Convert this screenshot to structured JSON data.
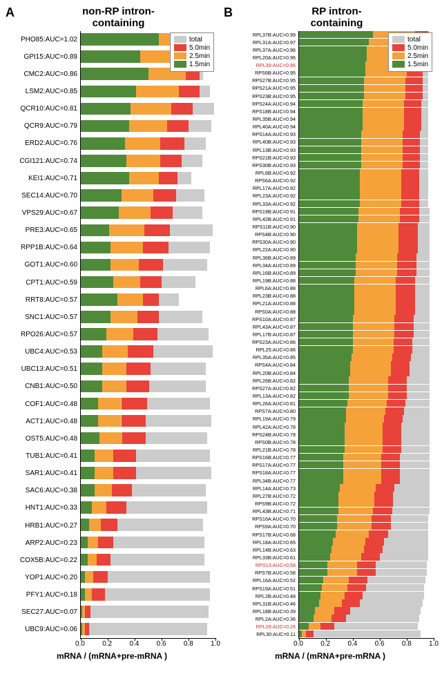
{
  "colors": {
    "total": "#cccccc",
    "t50": "#e8423a",
    "t25": "#f5a23b",
    "t15": "#4e8a3a",
    "highlight": "#d62728"
  },
  "legend": {
    "items": [
      {
        "key": "total",
        "label": "total"
      },
      {
        "key": "t50",
        "label": "5.0min"
      },
      {
        "key": "t25",
        "label": "2.5min"
      },
      {
        "key": "t15",
        "label": "1.5min"
      }
    ]
  },
  "xaxis": {
    "title": "mRNA / (mRNA+pre-mRNA )",
    "ticks": [
      0.0,
      0.2,
      0.4,
      0.6,
      0.8,
      1.0
    ]
  },
  "panelA": {
    "letter": "A",
    "title": "non-RP intron-\ncontaining",
    "rows": [
      {
        "gene": "PHO85",
        "auc": 1.02,
        "total": 0.96,
        "seg": [
          0.58,
          0.29,
          0.1
        ]
      },
      {
        "gene": "GPI15",
        "auc": 0.89,
        "total": 0.97,
        "seg": [
          0.44,
          0.31,
          0.15
        ]
      },
      {
        "gene": "CMC2",
        "auc": 0.86,
        "total": 0.91,
        "seg": [
          0.5,
          0.28,
          0.1
        ]
      },
      {
        "gene": "LSM2",
        "auc": 0.85,
        "total": 0.96,
        "seg": [
          0.41,
          0.32,
          0.15
        ]
      },
      {
        "gene": "QCR10",
        "auc": 0.81,
        "total": 0.99,
        "seg": [
          0.37,
          0.3,
          0.16
        ]
      },
      {
        "gene": "QCR9",
        "auc": 0.79,
        "total": 0.97,
        "seg": [
          0.36,
          0.28,
          0.16
        ]
      },
      {
        "gene": "ERD2",
        "auc": 0.76,
        "total": 0.93,
        "seg": [
          0.33,
          0.26,
          0.18
        ]
      },
      {
        "gene": "CGI121",
        "auc": 0.74,
        "total": 0.9,
        "seg": [
          0.34,
          0.25,
          0.16
        ]
      },
      {
        "gene": "KEI1",
        "auc": 0.71,
        "total": 0.82,
        "seg": [
          0.36,
          0.22,
          0.14
        ]
      },
      {
        "gene": "SEC14",
        "auc": 0.7,
        "total": 0.92,
        "seg": [
          0.3,
          0.24,
          0.17
        ]
      },
      {
        "gene": "VPS29",
        "auc": 0.67,
        "total": 0.9,
        "seg": [
          0.28,
          0.24,
          0.16
        ]
      },
      {
        "gene": "PRE3",
        "auc": 0.65,
        "total": 0.98,
        "seg": [
          0.21,
          0.26,
          0.19
        ]
      },
      {
        "gene": "RPP1B",
        "auc": 0.64,
        "total": 0.96,
        "seg": [
          0.22,
          0.24,
          0.19
        ]
      },
      {
        "gene": "GOT1",
        "auc": 0.6,
        "total": 0.94,
        "seg": [
          0.22,
          0.21,
          0.18
        ]
      },
      {
        "gene": "CPT1",
        "auc": 0.59,
        "total": 0.85,
        "seg": [
          0.24,
          0.2,
          0.16
        ]
      },
      {
        "gene": "RRT8",
        "auc": 0.57,
        "total": 0.73,
        "seg": [
          0.27,
          0.19,
          0.12
        ]
      },
      {
        "gene": "SNC1",
        "auc": 0.57,
        "total": 0.9,
        "seg": [
          0.22,
          0.2,
          0.16
        ]
      },
      {
        "gene": "RPO26",
        "auc": 0.57,
        "total": 0.95,
        "seg": [
          0.19,
          0.2,
          0.18
        ]
      },
      {
        "gene": "UBC4",
        "auc": 0.53,
        "total": 0.98,
        "seg": [
          0.16,
          0.19,
          0.19
        ]
      },
      {
        "gene": "UBC13",
        "auc": 0.51,
        "total": 0.93,
        "seg": [
          0.16,
          0.18,
          0.18
        ]
      },
      {
        "gene": "CNB1",
        "auc": 0.5,
        "total": 0.93,
        "seg": [
          0.16,
          0.18,
          0.17
        ]
      },
      {
        "gene": "COF1",
        "auc": 0.48,
        "total": 0.96,
        "seg": [
          0.13,
          0.17,
          0.19
        ]
      },
      {
        "gene": "ACT1",
        "auc": 0.48,
        "total": 0.97,
        "seg": [
          0.13,
          0.17,
          0.18
        ]
      },
      {
        "gene": "OST5",
        "auc": 0.48,
        "total": 0.94,
        "seg": [
          0.14,
          0.17,
          0.17
        ]
      },
      {
        "gene": "TUB1",
        "auc": 0.41,
        "total": 0.96,
        "seg": [
          0.1,
          0.14,
          0.17
        ]
      },
      {
        "gene": "SAR1",
        "auc": 0.41,
        "total": 0.97,
        "seg": [
          0.1,
          0.14,
          0.17
        ]
      },
      {
        "gene": "SAC6",
        "auc": 0.38,
        "total": 0.93,
        "seg": [
          0.1,
          0.13,
          0.15
        ]
      },
      {
        "gene": "HNT1",
        "auc": 0.33,
        "total": 0.94,
        "seg": [
          0.08,
          0.11,
          0.15
        ]
      },
      {
        "gene": "HRB1",
        "auc": 0.27,
        "total": 0.91,
        "seg": [
          0.06,
          0.09,
          0.12
        ]
      },
      {
        "gene": "ARP2",
        "auc": 0.23,
        "total": 0.92,
        "seg": [
          0.05,
          0.08,
          0.11
        ]
      },
      {
        "gene": "COX5B",
        "auc": 0.22,
        "total": 0.92,
        "seg": [
          0.05,
          0.07,
          0.1
        ]
      },
      {
        "gene": "YOP1",
        "auc": 0.2,
        "total": 0.96,
        "seg": [
          0.03,
          0.06,
          0.11
        ]
      },
      {
        "gene": "PFY1",
        "auc": 0.18,
        "total": 0.96,
        "seg": [
          0.03,
          0.05,
          0.1
        ]
      },
      {
        "gene": "SEC27",
        "auc": 0.07,
        "total": 0.95,
        "seg": [
          0.01,
          0.02,
          0.04
        ]
      },
      {
        "gene": "UBC9",
        "auc": 0.06,
        "total": 0.94,
        "seg": [
          0.01,
          0.02,
          0.03
        ]
      }
    ]
  },
  "panelB": {
    "letter": "B",
    "title": "RP intron-\ncontaining",
    "rows": [
      {
        "gene": "RPL37B",
        "auc": 0.99,
        "total": 0.97,
        "seg": [
          0.55,
          0.31,
          0.1
        ]
      },
      {
        "gene": "RPL31A",
        "auc": 0.97,
        "total": 0.96,
        "seg": [
          0.52,
          0.31,
          0.11
        ]
      },
      {
        "gene": "RPL37A",
        "auc": 0.96,
        "total": 0.97,
        "seg": [
          0.5,
          0.31,
          0.12
        ]
      },
      {
        "gene": "RPL20A",
        "auc": 0.96,
        "total": 0.96,
        "seg": [
          0.5,
          0.31,
          0.12
        ]
      },
      {
        "gene": "RPL39",
        "auc": 0.96,
        "total": 0.97,
        "seg": [
          0.49,
          0.31,
          0.13
        ],
        "hl": true
      },
      {
        "gene": "RPS6B",
        "auc": 0.95,
        "total": 0.96,
        "seg": [
          0.49,
          0.31,
          0.12
        ]
      },
      {
        "gene": "RPS27B",
        "auc": 0.95,
        "total": 0.96,
        "seg": [
          0.48,
          0.31,
          0.13
        ]
      },
      {
        "gene": "RPS21A",
        "auc": 0.95,
        "total": 0.96,
        "seg": [
          0.48,
          0.31,
          0.13
        ]
      },
      {
        "gene": "RPS23B",
        "auc": 0.95,
        "total": 0.96,
        "seg": [
          0.48,
          0.31,
          0.13
        ]
      },
      {
        "gene": "RPS24A",
        "auc": 0.94,
        "total": 0.96,
        "seg": [
          0.47,
          0.31,
          0.13
        ]
      },
      {
        "gene": "RPS18B",
        "auc": 0.94,
        "total": 0.96,
        "seg": [
          0.47,
          0.31,
          0.13
        ]
      },
      {
        "gene": "RPL35B",
        "auc": 0.94,
        "total": 0.96,
        "seg": [
          0.47,
          0.31,
          0.13
        ]
      },
      {
        "gene": "RPL40A",
        "auc": 0.94,
        "total": 0.96,
        "seg": [
          0.47,
          0.31,
          0.13
        ]
      },
      {
        "gene": "RPS14A",
        "auc": 0.93,
        "total": 0.96,
        "seg": [
          0.46,
          0.31,
          0.13
        ]
      },
      {
        "gene": "RPL40B",
        "auc": 0.93,
        "total": 0.96,
        "seg": [
          0.46,
          0.31,
          0.13
        ]
      },
      {
        "gene": "RPL13B",
        "auc": 0.93,
        "total": 0.96,
        "seg": [
          0.46,
          0.31,
          0.13
        ]
      },
      {
        "gene": "RPS21B",
        "auc": 0.93,
        "total": 0.96,
        "seg": [
          0.46,
          0.31,
          0.13
        ]
      },
      {
        "gene": "RPS30B",
        "auc": 0.93,
        "total": 0.96,
        "seg": [
          0.46,
          0.31,
          0.13
        ]
      },
      {
        "gene": "RPL6B",
        "auc": 0.92,
        "total": 0.96,
        "seg": [
          0.45,
          0.31,
          0.13
        ]
      },
      {
        "gene": "RPS6A",
        "auc": 0.92,
        "total": 0.96,
        "seg": [
          0.45,
          0.31,
          0.13
        ]
      },
      {
        "gene": "RPL17A",
        "auc": 0.92,
        "total": 0.96,
        "seg": [
          0.45,
          0.31,
          0.13
        ]
      },
      {
        "gene": "RPL23A",
        "auc": 0.92,
        "total": 0.96,
        "seg": [
          0.45,
          0.31,
          0.13
        ]
      },
      {
        "gene": "RPL33A",
        "auc": 0.92,
        "total": 0.96,
        "seg": [
          0.45,
          0.31,
          0.13
        ]
      },
      {
        "gene": "RPS19B",
        "auc": 0.91,
        "total": 0.97,
        "seg": [
          0.44,
          0.31,
          0.14
        ]
      },
      {
        "gene": "RPL42B",
        "auc": 0.91,
        "total": 0.97,
        "seg": [
          0.44,
          0.31,
          0.14
        ]
      },
      {
        "gene": "RPS11B",
        "auc": 0.9,
        "total": 0.97,
        "seg": [
          0.43,
          0.31,
          0.14
        ]
      },
      {
        "gene": "RPS4B",
        "auc": 0.9,
        "total": 0.97,
        "seg": [
          0.43,
          0.31,
          0.14
        ]
      },
      {
        "gene": "RPS30A",
        "auc": 0.9,
        "total": 0.97,
        "seg": [
          0.43,
          0.31,
          0.14
        ]
      },
      {
        "gene": "RPL22A",
        "auc": 0.9,
        "total": 0.97,
        "seg": [
          0.43,
          0.31,
          0.14
        ]
      },
      {
        "gene": "RPL36B",
        "auc": 0.89,
        "total": 0.97,
        "seg": [
          0.42,
          0.31,
          0.14
        ]
      },
      {
        "gene": "RPL34A",
        "auc": 0.89,
        "total": 0.97,
        "seg": [
          0.42,
          0.31,
          0.14
        ]
      },
      {
        "gene": "RPL16B",
        "auc": 0.89,
        "total": 0.97,
        "seg": [
          0.42,
          0.31,
          0.14
        ]
      },
      {
        "gene": "RPL19B",
        "auc": 0.88,
        "total": 0.97,
        "seg": [
          0.41,
          0.31,
          0.14
        ]
      },
      {
        "gene": "RPL6A",
        "auc": 0.88,
        "total": 0.97,
        "seg": [
          0.41,
          0.31,
          0.14
        ]
      },
      {
        "gene": "RPL23B",
        "auc": 0.88,
        "total": 0.97,
        "seg": [
          0.41,
          0.31,
          0.14
        ]
      },
      {
        "gene": "RPL21A",
        "auc": 0.88,
        "total": 0.97,
        "seg": [
          0.41,
          0.31,
          0.14
        ]
      },
      {
        "gene": "RPS0A",
        "auc": 0.88,
        "total": 0.97,
        "seg": [
          0.41,
          0.31,
          0.14
        ]
      },
      {
        "gene": "RPS10A",
        "auc": 0.87,
        "total": 0.97,
        "seg": [
          0.4,
          0.31,
          0.14
        ]
      },
      {
        "gene": "RPL43A",
        "auc": 0.87,
        "total": 0.97,
        "seg": [
          0.4,
          0.31,
          0.14
        ]
      },
      {
        "gene": "RPL17B",
        "auc": 0.87,
        "total": 0.97,
        "seg": [
          0.4,
          0.31,
          0.14
        ]
      },
      {
        "gene": "RPS23A",
        "auc": 0.86,
        "total": 0.97,
        "seg": [
          0.4,
          0.3,
          0.14
        ]
      },
      {
        "gene": "RPL25",
        "auc": 0.86,
        "total": 0.97,
        "seg": [
          0.4,
          0.3,
          0.14
        ]
      },
      {
        "gene": "RPL35A",
        "auc": 0.85,
        "total": 0.97,
        "seg": [
          0.39,
          0.3,
          0.14
        ]
      },
      {
        "gene": "RPS4A",
        "auc": 0.84,
        "total": 0.97,
        "seg": [
          0.38,
          0.3,
          0.14
        ]
      },
      {
        "gene": "RPL20B",
        "auc": 0.84,
        "total": 0.97,
        "seg": [
          0.38,
          0.3,
          0.14
        ]
      },
      {
        "gene": "RPL26B",
        "auc": 0.82,
        "total": 0.97,
        "seg": [
          0.37,
          0.29,
          0.14
        ]
      },
      {
        "gene": "RPS27A",
        "auc": 0.82,
        "total": 0.97,
        "seg": [
          0.37,
          0.29,
          0.14
        ]
      },
      {
        "gene": "RPL13A",
        "auc": 0.82,
        "total": 0.97,
        "seg": [
          0.37,
          0.29,
          0.14
        ]
      },
      {
        "gene": "RPL26A",
        "auc": 0.81,
        "total": 0.97,
        "seg": [
          0.36,
          0.29,
          0.14
        ]
      },
      {
        "gene": "RPS7A",
        "auc": 0.8,
        "total": 0.97,
        "seg": [
          0.35,
          0.29,
          0.14
        ]
      },
      {
        "gene": "RPL19A",
        "auc": 0.79,
        "total": 0.97,
        "seg": [
          0.35,
          0.28,
          0.14
        ]
      },
      {
        "gene": "RPL42A",
        "auc": 0.78,
        "total": 0.97,
        "seg": [
          0.34,
          0.28,
          0.14
        ]
      },
      {
        "gene": "RPS24B",
        "auc": 0.78,
        "total": 0.97,
        "seg": [
          0.34,
          0.28,
          0.14
        ]
      },
      {
        "gene": "RPS0B",
        "auc": 0.78,
        "total": 0.97,
        "seg": [
          0.34,
          0.28,
          0.14
        ]
      },
      {
        "gene": "RPL21B",
        "auc": 0.78,
        "total": 0.97,
        "seg": [
          0.34,
          0.28,
          0.14
        ]
      },
      {
        "gene": "RPS16B",
        "auc": 0.77,
        "total": 0.97,
        "seg": [
          0.33,
          0.28,
          0.14
        ]
      },
      {
        "gene": "RPS17A",
        "auc": 0.77,
        "total": 0.97,
        "seg": [
          0.33,
          0.28,
          0.14
        ]
      },
      {
        "gene": "RPS18A",
        "auc": 0.77,
        "total": 0.97,
        "seg": [
          0.33,
          0.28,
          0.14
        ]
      },
      {
        "gene": "RPL34B",
        "auc": 0.77,
        "total": 0.97,
        "seg": [
          0.33,
          0.28,
          0.14
        ]
      },
      {
        "gene": "RPL14A",
        "auc": 0.73,
        "total": 0.97,
        "seg": [
          0.3,
          0.27,
          0.14
        ]
      },
      {
        "gene": "RPL27B",
        "auc": 0.72,
        "total": 0.97,
        "seg": [
          0.29,
          0.27,
          0.14
        ]
      },
      {
        "gene": "RPS9B",
        "auc": 0.72,
        "total": 0.97,
        "seg": [
          0.29,
          0.27,
          0.14
        ]
      },
      {
        "gene": "RPL43B",
        "auc": 0.71,
        "total": 0.97,
        "seg": [
          0.29,
          0.26,
          0.14
        ]
      },
      {
        "gene": "RPS16A",
        "auc": 0.7,
        "total": 0.96,
        "seg": [
          0.28,
          0.26,
          0.14
        ]
      },
      {
        "gene": "RPS9A",
        "auc": 0.7,
        "total": 0.96,
        "seg": [
          0.28,
          0.26,
          0.14
        ]
      },
      {
        "gene": "RPS17B",
        "auc": 0.68,
        "total": 0.96,
        "seg": [
          0.27,
          0.25,
          0.14
        ]
      },
      {
        "gene": "RPL18A",
        "auc": 0.65,
        "total": 0.96,
        "seg": [
          0.25,
          0.24,
          0.14
        ]
      },
      {
        "gene": "RPL14B",
        "auc": 0.63,
        "total": 0.96,
        "seg": [
          0.24,
          0.24,
          0.14
        ]
      },
      {
        "gene": "RPL33B",
        "auc": 0.61,
        "total": 0.96,
        "seg": [
          0.23,
          0.23,
          0.14
        ]
      },
      {
        "gene": "RPS13",
        "auc": 0.58,
        "total": 0.95,
        "seg": [
          0.21,
          0.22,
          0.14
        ],
        "hl": true
      },
      {
        "gene": "RPS7B",
        "auc": 0.58,
        "total": 0.95,
        "seg": [
          0.21,
          0.22,
          0.14
        ]
      },
      {
        "gene": "RPL16A",
        "auc": 0.52,
        "total": 0.94,
        "seg": [
          0.18,
          0.19,
          0.14
        ]
      },
      {
        "gene": "RPS19A",
        "auc": 0.51,
        "total": 0.93,
        "seg": [
          0.17,
          0.19,
          0.14
        ]
      },
      {
        "gene": "RPL2B",
        "auc": 0.48,
        "total": 0.93,
        "seg": [
          0.16,
          0.18,
          0.13
        ]
      },
      {
        "gene": "RPL31B",
        "auc": 0.46,
        "total": 0.92,
        "seg": [
          0.15,
          0.17,
          0.13
        ]
      },
      {
        "gene": "RPL18B",
        "auc": 0.39,
        "total": 0.9,
        "seg": [
          0.12,
          0.14,
          0.12
        ]
      },
      {
        "gene": "RPL2A",
        "auc": 0.36,
        "total": 0.89,
        "seg": [
          0.11,
          0.13,
          0.11
        ]
      },
      {
        "gene": "RPL28",
        "auc": 0.26,
        "total": 0.88,
        "seg": [
          0.07,
          0.09,
          0.1
        ],
        "hl": true
      },
      {
        "gene": "RPL30",
        "auc": 0.11,
        "total": 0.9,
        "seg": [
          0.02,
          0.03,
          0.06
        ]
      }
    ]
  }
}
